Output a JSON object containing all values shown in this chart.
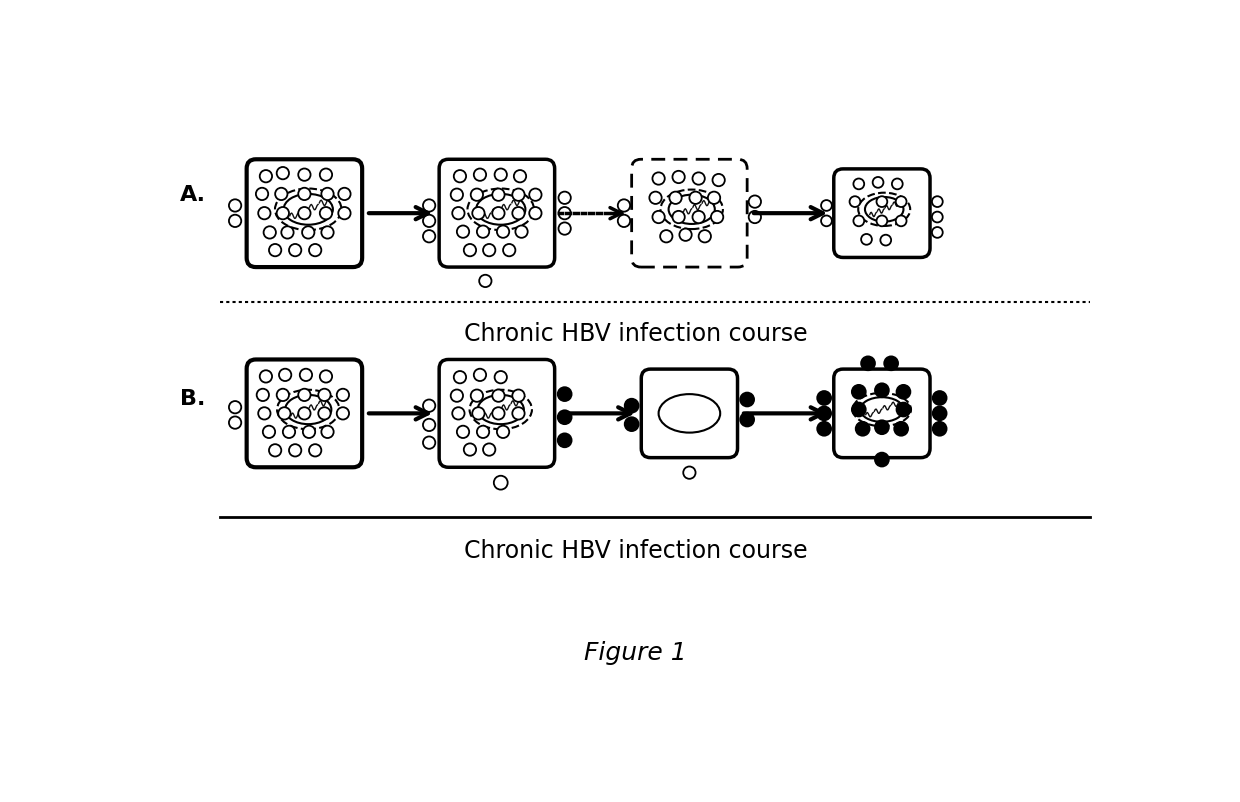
{
  "title": "Figure 1",
  "label_a": "A.",
  "label_b": "B.",
  "caption_a": "Chronic HBV infection course",
  "caption_b": "Chronic HBV infection course",
  "bg_color": "#ffffff",
  "text_color": "#000000"
}
